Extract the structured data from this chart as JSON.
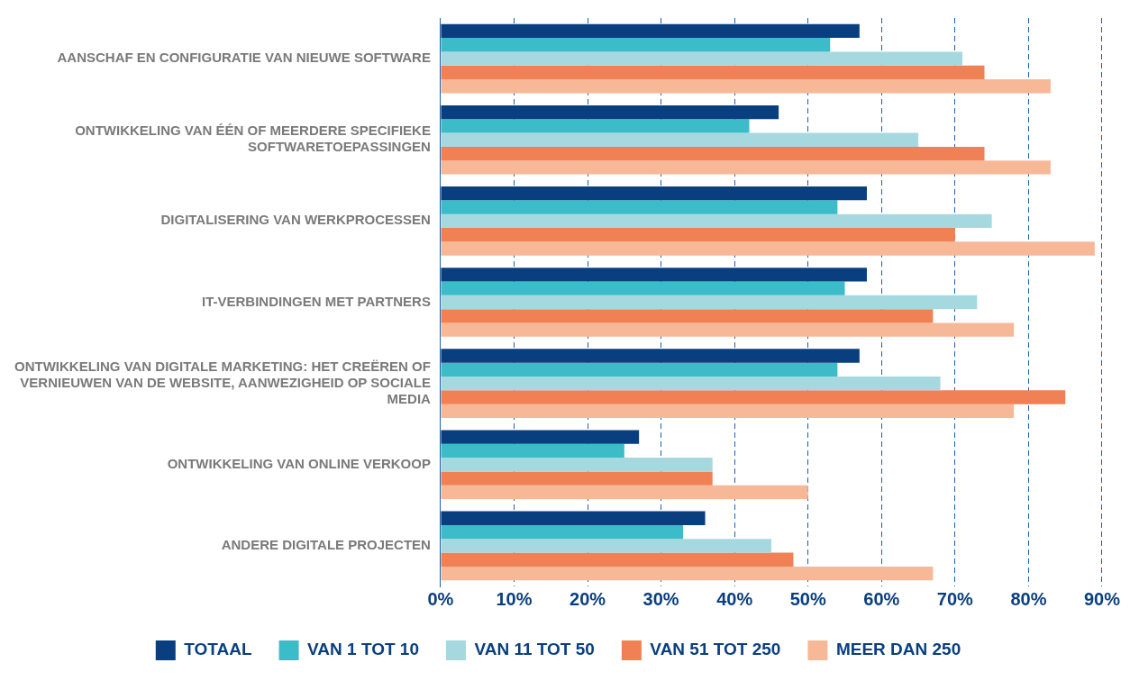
{
  "chart_data": {
    "type": "bar",
    "orientation": "horizontal",
    "categories": [
      "AANSCHAF EN CONFIGURATIE VAN NIEUWE SOFTWARE",
      "ONTWIKKELING VAN ÉÉN OF MEERDERE SPECIFIEKE SOFTWARETOEPASSINGEN",
      "DIGITALISERING VAN WERKPROCESSEN",
      "IT-VERBINDINGEN MET PARTNERS",
      "ONTWIKKELING VAN DIGITALE MARKETING: HET CREËREN OF VERNIEUWEN VAN DE WEBSITE, AANWEZIGHEID OP SOCIALE MEDIA",
      "ONTWIKKELING VAN ONLINE VERKOOP",
      "ANDERE DIGITALE PROJECTEN"
    ],
    "series": [
      {
        "name": "TOTAAL",
        "color": "#0a3f7f",
        "values": [
          57,
          46,
          58,
          58,
          57,
          27,
          36
        ]
      },
      {
        "name": "VAN 1 TOT 10",
        "color": "#3cbcc9",
        "values": [
          53,
          42,
          54,
          55,
          54,
          25,
          33
        ]
      },
      {
        "name": "VAN 11 TOT 50",
        "color": "#a6d9df",
        "values": [
          71,
          65,
          75,
          73,
          68,
          37,
          45
        ]
      },
      {
        "name": "VAN 51 TOT 250",
        "color": "#ef8155",
        "values": [
          74,
          74,
          70,
          67,
          85,
          37,
          48
        ]
      },
      {
        "name": "MEER DAN 250",
        "color": "#f7b898",
        "values": [
          83,
          83,
          89,
          78,
          78,
          50,
          67
        ]
      }
    ],
    "xlim": [
      0,
      90
    ],
    "xticks": [
      {
        "value": 0,
        "label": "0%"
      },
      {
        "value": 10,
        "label": "10%"
      },
      {
        "value": 20,
        "label": "20%"
      },
      {
        "value": 30,
        "label": "30%"
      },
      {
        "value": 40,
        "label": "40%"
      },
      {
        "value": 50,
        "label": "50%"
      },
      {
        "value": 60,
        "label": "60%"
      },
      {
        "value": 70,
        "label": "70%"
      },
      {
        "value": 80,
        "label": "80%"
      },
      {
        "value": 90,
        "label": "90%"
      }
    ],
    "grid": "x",
    "legend": "bottom"
  }
}
